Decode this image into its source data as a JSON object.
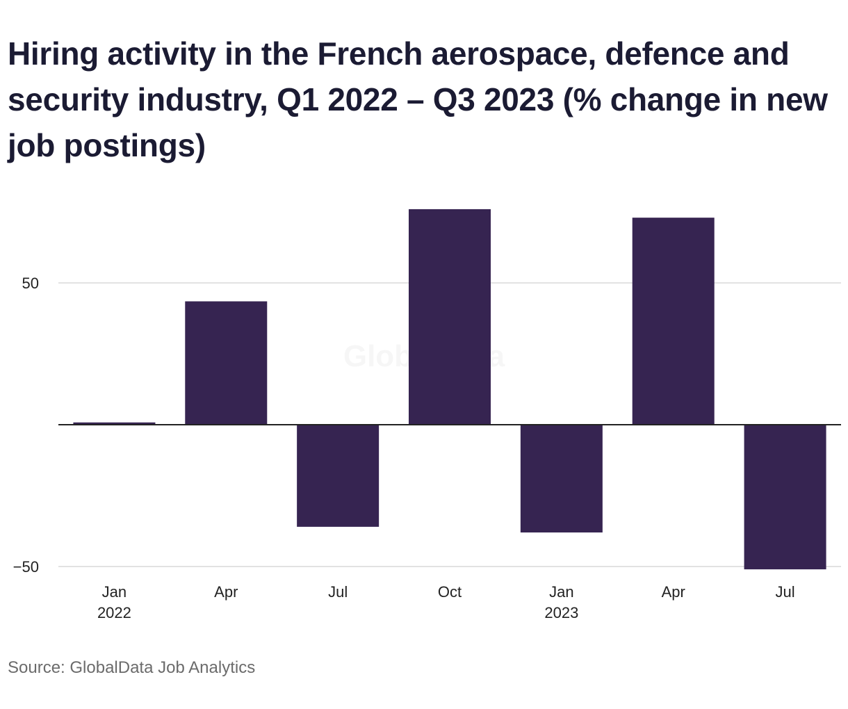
{
  "chart_data": {
    "type": "bar",
    "title": "Hiring activity in the French aerospace, defence and security industry, Q1 2022 – Q3 2023 (% change in new job postings)",
    "categories": [
      "Jan 2022",
      "Apr 2022",
      "Jul 2022",
      "Oct 2022",
      "Jan 2023",
      "Apr 2023",
      "Jul 2023"
    ],
    "x_tick_labels": [
      {
        "month": "Jan",
        "year": "2022"
      },
      {
        "month": "Apr",
        "year": ""
      },
      {
        "month": "Jul",
        "year": ""
      },
      {
        "month": "Oct",
        "year": ""
      },
      {
        "month": "Jan",
        "year": "2023"
      },
      {
        "month": "Apr",
        "year": ""
      },
      {
        "month": "Jul",
        "year": ""
      }
    ],
    "values": [
      0.8,
      43.5,
      -36,
      76,
      -38,
      73,
      -51
    ],
    "y_ticks": [
      50,
      -50
    ],
    "y_tick_labels": [
      "50",
      "−50"
    ],
    "ylim": [
      -51,
      76
    ],
    "grid": true,
    "xlabel": "",
    "ylabel": "",
    "bar_color": "#362451",
    "zero_line_color": "#222222",
    "grid_color": "#d9d9d9"
  },
  "watermark": "GlobalData",
  "source": "Source: GlobalData Job Analytics"
}
